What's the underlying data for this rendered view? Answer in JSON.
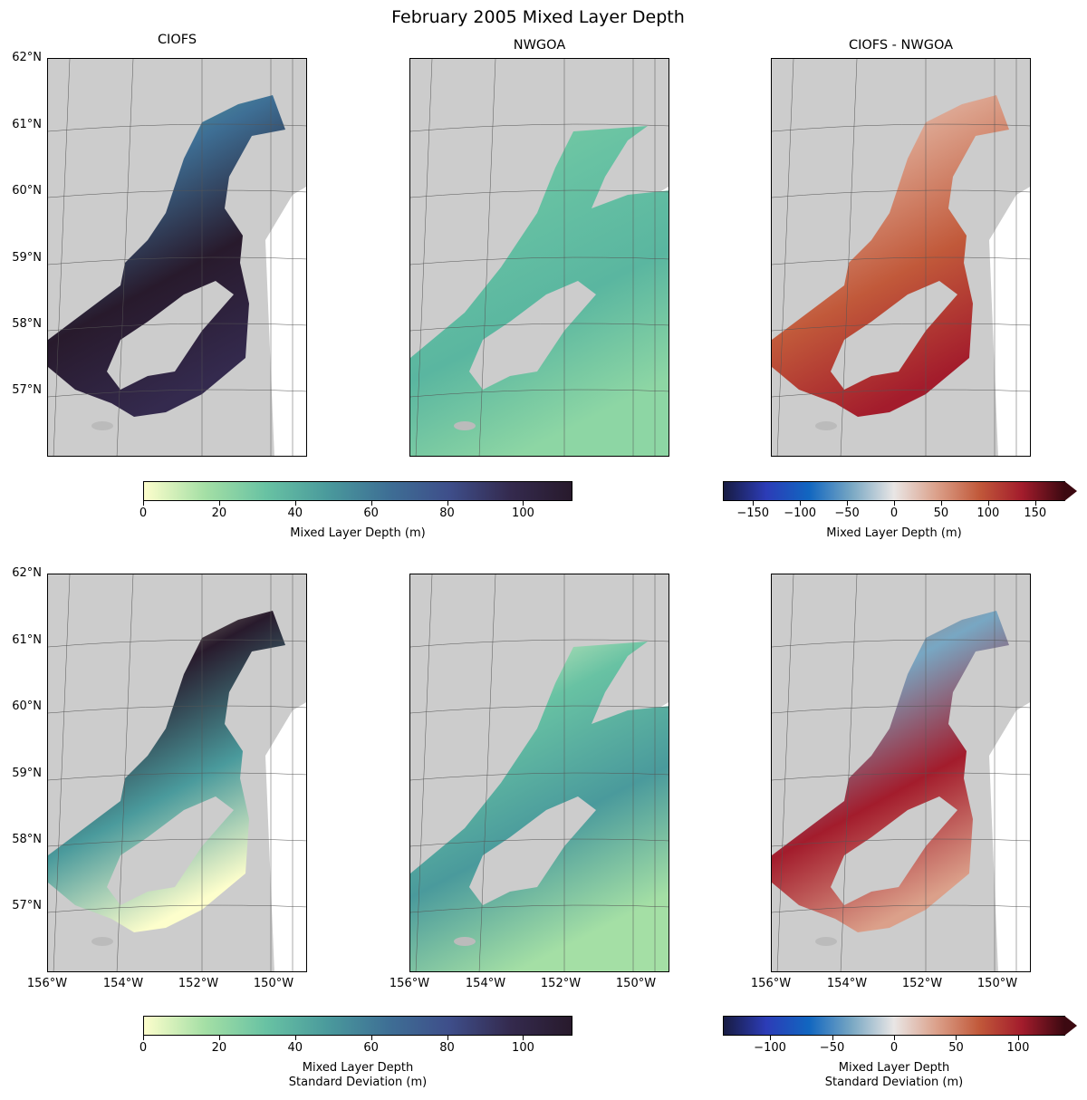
{
  "title": "February 2005 Mixed Layer Depth",
  "column_titles": [
    "CIOFS",
    "NWGOA",
    "CIOFS - NWGOA"
  ],
  "lat_labels": [
    "62°N",
    "61°N",
    "60°N",
    "59°N",
    "58°N",
    "57°N"
  ],
  "lon_labels": [
    "156°W",
    "154°W",
    "152°W",
    "150°W"
  ],
  "land_color": "#cccccc",
  "panels": [
    {
      "row": "top",
      "column": "CIOFS",
      "field": "Mixed Layer Depth"
    },
    {
      "row": "top",
      "column": "NWGOA",
      "field": "Mixed Layer Depth"
    },
    {
      "row": "top",
      "column": "CIOFS - NWGOA",
      "field": "Mixed Layer Depth difference"
    },
    {
      "row": "bottom",
      "column": "CIOFS",
      "field": "Mixed Layer Depth Standard Deviation"
    },
    {
      "row": "bottom",
      "column": "NWGOA",
      "field": "Mixed Layer Depth Standard Deviation"
    },
    {
      "row": "bottom",
      "column": "CIOFS - NWGOA",
      "field": "Mixed Layer Depth Standard Deviation difference"
    }
  ],
  "colorbars": {
    "top_left": {
      "label": "Mixed Layer Depth (m)",
      "range": [
        0,
        113
      ],
      "ticks": [
        "0",
        "20",
        "40",
        "60",
        "80",
        "100"
      ],
      "tick_values": [
        0,
        20,
        40,
        60,
        80,
        100
      ],
      "colormap": "deep",
      "extend": "none"
    },
    "top_right": {
      "label": "Mixed Layer Depth (m)",
      "range": [
        -182,
        182
      ],
      "ticks": [
        "−150",
        "−100",
        "−50",
        "0",
        "50",
        "100",
        "150"
      ],
      "tick_values": [
        -150,
        -100,
        -50,
        0,
        50,
        100,
        150
      ],
      "colormap": "balance",
      "extend": "max"
    },
    "bottom_left": {
      "label_line1": "Mixed Layer Depth",
      "label_line2": "Standard Deviation (m)",
      "range": [
        0,
        113
      ],
      "ticks": [
        "0",
        "20",
        "40",
        "60",
        "80",
        "100"
      ],
      "tick_values": [
        0,
        20,
        40,
        60,
        80,
        100
      ],
      "colormap": "deep",
      "extend": "none"
    },
    "bottom_right": {
      "label_line1": "Mixed Layer Depth",
      "label_line2": "Standard Deviation (m)",
      "range": [
        -138,
        138
      ],
      "ticks": [
        "−100",
        "−50",
        "0",
        "50",
        "100"
      ],
      "tick_values": [
        -100,
        -50,
        0,
        50,
        100
      ],
      "colormap": "balance",
      "extend": "max"
    }
  }
}
